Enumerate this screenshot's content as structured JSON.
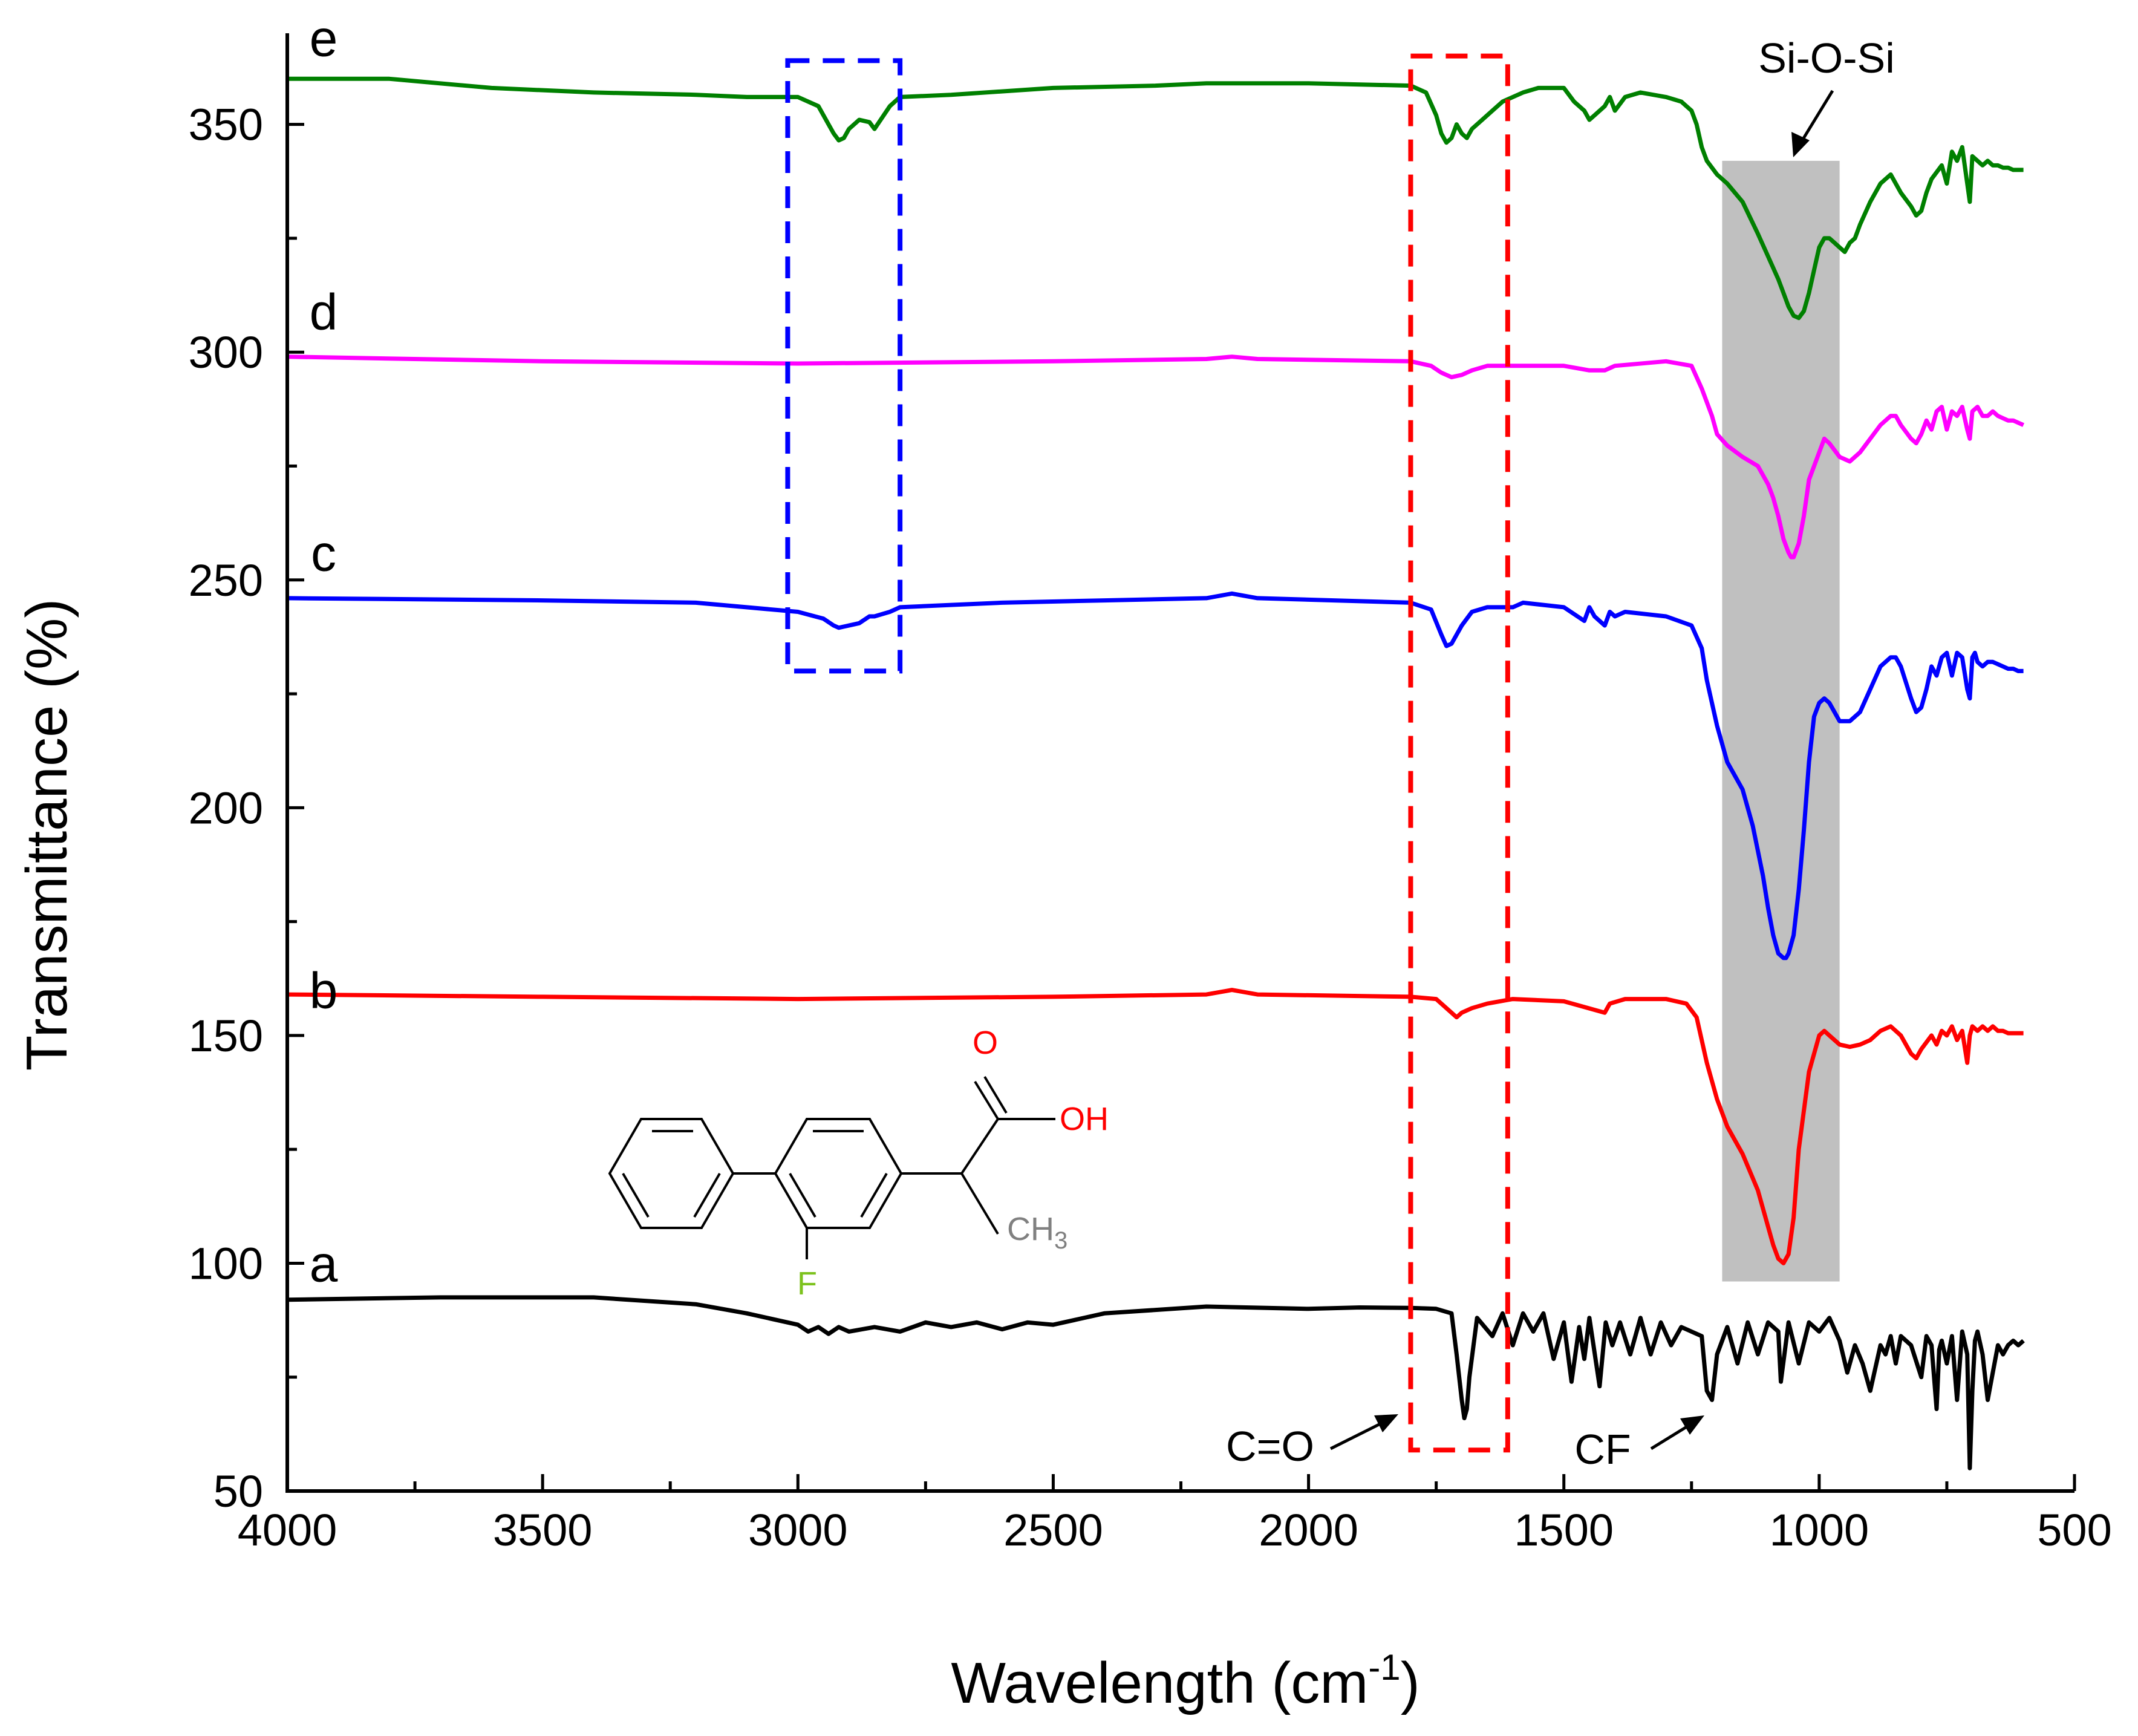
{
  "chart_data": {
    "type": "line",
    "title": "",
    "xlabel": "Wavelength (cm",
    "xlabel_sup": "-1",
    "xlabel_end": ")",
    "ylabel": "Transmittance (%)",
    "xlim": [
      4000,
      500
    ],
    "ylim": [
      50,
      370
    ],
    "x_ticks": [
      4000,
      3500,
      3000,
      2500,
      2000,
      1500,
      1000,
      500
    ],
    "y_ticks": [
      50,
      100,
      150,
      200,
      250,
      300,
      350
    ],
    "grid": false,
    "legend": "none",
    "series": [
      {
        "name": "a",
        "color": "#000000",
        "x": [
          4000,
          3700,
          3400,
          3200,
          3100,
          3000,
          2980,
          2960,
          2940,
          2920,
          2900,
          2850,
          2800,
          2750,
          2700,
          2650,
          2600,
          2550,
          2500,
          2400,
          2200,
          2000,
          1900,
          1800,
          1750,
          1720,
          1710,
          1700,
          1695,
          1690,
          1685,
          1670,
          1640,
          1620,
          1600,
          1580,
          1560,
          1540,
          1520,
          1500,
          1485,
          1470,
          1460,
          1450,
          1430,
          1418,
          1405,
          1390,
          1370,
          1350,
          1330,
          1310,
          1290,
          1270,
          1250,
          1230,
          1220,
          1210,
          1200,
          1180,
          1160,
          1140,
          1120,
          1100,
          1080,
          1075,
          1060,
          1040,
          1020,
          1000,
          980,
          960,
          945,
          930,
          915,
          900,
          880,
          870,
          860,
          850,
          840,
          820,
          800,
          790,
          780,
          770,
          765,
          760,
          750,
          740,
          730,
          720,
          710,
          705,
          700,
          695,
          690,
          680,
          670,
          660,
          650,
          640,
          630,
          620,
          610,
          600
        ],
        "values": [
          92,
          92.5,
          92.5,
          91,
          89,
          86.5,
          85,
          86,
          84.5,
          86,
          85,
          86,
          85,
          87,
          86,
          87,
          85.5,
          87,
          86.5,
          89,
          90.5,
          90,
          90.3,
          90.2,
          90,
          89,
          80,
          70,
          66,
          68,
          75,
          88,
          84,
          89,
          82,
          89,
          85,
          89,
          79,
          87,
          74,
          86,
          79,
          88,
          73,
          87,
          82,
          87,
          80,
          88,
          80,
          87,
          82,
          86,
          85,
          84,
          72,
          70,
          80,
          86,
          78,
          87,
          80,
          87,
          85,
          74,
          87,
          78,
          87,
          85,
          88,
          83,
          76,
          82,
          78,
          72,
          82,
          80,
          84,
          78,
          84,
          82,
          75,
          84,
          82,
          68,
          81,
          83,
          78,
          84,
          70,
          85,
          80,
          55,
          72,
          83,
          85,
          80,
          70,
          76,
          82,
          80,
          82,
          83,
          82,
          83
        ],
        "label_at": [
          4000,
          100
        ]
      },
      {
        "name": "b",
        "color": "#ff0000",
        "x": [
          4000,
          3500,
          3000,
          2500,
          2200,
          2150,
          2100,
          1800,
          1750,
          1720,
          1710,
          1700,
          1680,
          1650,
          1600,
          1500,
          1420,
          1410,
          1380,
          1300,
          1260,
          1240,
          1220,
          1200,
          1180,
          1150,
          1120,
          1100,
          1090,
          1080,
          1070,
          1060,
          1050,
          1040,
          1020,
          1000,
          990,
          980,
          960,
          940,
          920,
          900,
          880,
          860,
          840,
          820,
          810,
          800,
          780,
          770,
          760,
          750,
          740,
          730,
          720,
          710,
          705,
          700,
          690,
          680,
          670,
          660,
          650,
          640,
          630,
          620,
          610,
          600
        ],
        "values": [
          159,
          158.5,
          158,
          158.5,
          159,
          160,
          159,
          158.5,
          158,
          155,
          154,
          155,
          156,
          157,
          158,
          157.5,
          155,
          157,
          158,
          158,
          157,
          154,
          144,
          136,
          130,
          124,
          116,
          108,
          104,
          101,
          100,
          102,
          110,
          125,
          142,
          150,
          151,
          150,
          148,
          147.5,
          148,
          149,
          151,
          152,
          150,
          146,
          145,
          147,
          150,
          148,
          151,
          150,
          152,
          149,
          151,
          144,
          150,
          152,
          151,
          152,
          151,
          152,
          151,
          151,
          150.5,
          150.5,
          150.5,
          150.5
        ],
        "label_at": [
          4000,
          160
        ]
      },
      {
        "name": "c",
        "color": "#0000ff",
        "x": [
          4000,
          3500,
          3200,
          3000,
          2950,
          2930,
          2920,
          2900,
          2880,
          2860,
          2850,
          2820,
          2800,
          2600,
          2400,
          2200,
          2150,
          2100,
          1800,
          1760,
          1740,
          1730,
          1720,
          1700,
          1680,
          1650,
          1600,
          1580,
          1500,
          1460,
          1450,
          1440,
          1420,
          1410,
          1400,
          1380,
          1300,
          1250,
          1230,
          1220,
          1200,
          1180,
          1150,
          1130,
          1110,
          1100,
          1090,
          1080,
          1070,
          1065,
          1060,
          1050,
          1040,
          1030,
          1020,
          1010,
          1000,
          990,
          980,
          960,
          940,
          920,
          900,
          880,
          860,
          850,
          840,
          820,
          810,
          800,
          790,
          780,
          770,
          760,
          750,
          740,
          730,
          720,
          710,
          705,
          700,
          695,
          690,
          680,
          670,
          660,
          650,
          640,
          630,
          620,
          610,
          600
        ],
        "values": [
          246,
          245.5,
          245,
          243,
          241.5,
          240,
          239.5,
          240,
          240.5,
          242,
          242,
          243,
          244,
          245,
          245.5,
          246,
          247,
          246,
          245,
          243.5,
          238,
          235.5,
          236,
          240,
          243,
          244,
          244,
          245,
          244,
          241,
          244,
          242,
          240,
          243,
          242,
          243,
          242,
          240,
          235,
          228,
          218,
          210,
          204,
          196,
          185,
          178,
          172,
          168,
          167,
          167,
          168,
          172,
          182,
          195,
          210,
          220,
          223,
          224,
          223,
          219,
          219,
          221,
          226,
          231,
          233,
          233,
          231,
          224,
          221,
          222,
          226,
          231,
          229,
          233,
          234,
          229,
          234,
          233,
          226,
          224,
          233,
          234,
          232,
          231,
          232,
          232,
          231.5,
          231,
          230.5,
          230.5,
          230,
          230
        ],
        "label_at": [
          4000,
          256
        ]
      },
      {
        "name": "d",
        "color": "#ff00ff",
        "x": [
          4000,
          3500,
          3000,
          2500,
          2200,
          2150,
          2100,
          1800,
          1760,
          1740,
          1720,
          1700,
          1680,
          1650,
          1600,
          1500,
          1450,
          1420,
          1400,
          1300,
          1250,
          1230,
          1210,
          1200,
          1180,
          1150,
          1120,
          1100,
          1090,
          1080,
          1070,
          1060,
          1055,
          1050,
          1040,
          1030,
          1020,
          1000,
          990,
          980,
          960,
          940,
          920,
          900,
          880,
          860,
          850,
          840,
          820,
          810,
          800,
          790,
          780,
          770,
          760,
          750,
          740,
          730,
          720,
          710,
          705,
          700,
          690,
          680,
          670,
          660,
          650,
          640,
          630,
          620,
          610,
          600
        ],
        "values": [
          299,
          298,
          297.5,
          298,
          298.5,
          299,
          298.5,
          298,
          297,
          295.5,
          294.5,
          295,
          296,
          297,
          297,
          297,
          296,
          296,
          297,
          298,
          297,
          292,
          286,
          282,
          279.5,
          277,
          275,
          271,
          268,
          264,
          259,
          256,
          255,
          255,
          258,
          264,
          272,
          278,
          281,
          280,
          277,
          276,
          278,
          281,
          284,
          286,
          286,
          284,
          281,
          280,
          282,
          285,
          283,
          287,
          288,
          283,
          287,
          286,
          288,
          283,
          281,
          287,
          288,
          286,
          286,
          287,
          286,
          285.5,
          285,
          285,
          284.5,
          284
        ],
        "label_at": [
          4000,
          309
        ]
      },
      {
        "name": "e",
        "color": "#008000",
        "x": [
          4000,
          3800,
          3600,
          3400,
          3200,
          3100,
          3000,
          2960,
          2940,
          2930,
          2920,
          2910,
          2900,
          2880,
          2860,
          2850,
          2820,
          2800,
          2700,
          2500,
          2300,
          2200,
          2000,
          1800,
          1770,
          1750,
          1740,
          1730,
          1720,
          1710,
          1700,
          1690,
          1680,
          1660,
          1640,
          1620,
          1600,
          1580,
          1550,
          1500,
          1480,
          1460,
          1450,
          1440,
          1420,
          1410,
          1400,
          1380,
          1350,
          1300,
          1270,
          1250,
          1240,
          1230,
          1220,
          1200,
          1180,
          1150,
          1120,
          1100,
          1080,
          1070,
          1060,
          1050,
          1040,
          1030,
          1020,
          1010,
          1000,
          990,
          980,
          970,
          960,
          950,
          940,
          930,
          920,
          900,
          880,
          860,
          840,
          820,
          810,
          800,
          790,
          780,
          760,
          750,
          740,
          730,
          720,
          710,
          705,
          700,
          690,
          680,
          670,
          660,
          650,
          640,
          630,
          620,
          610,
          600
        ],
        "values": [
          360,
          360,
          358,
          357,
          356.5,
          356,
          356,
          354,
          350,
          348,
          346.5,
          347,
          349,
          351,
          350.5,
          349,
          354,
          356,
          356.5,
          358,
          358.5,
          359,
          359,
          358.5,
          357,
          352,
          348,
          346,
          347,
          350,
          348,
          347,
          349,
          351,
          353,
          355,
          356,
          357,
          358,
          358,
          355,
          353,
          351,
          352,
          354,
          356,
          353,
          356,
          357,
          356,
          355,
          353,
          350,
          345,
          342,
          339,
          337,
          333,
          326,
          321,
          316,
          313,
          310,
          308,
          307.5,
          309,
          313,
          318,
          323,
          325,
          325,
          324,
          323,
          322,
          324,
          325,
          328,
          333,
          337,
          339,
          335,
          332,
          330,
          331,
          335,
          338,
          341,
          337,
          344,
          342,
          345,
          337,
          333,
          343,
          342,
          341,
          342,
          341,
          341,
          340.5,
          340.5,
          340,
          340,
          340
        ],
        "label_at": [
          4000,
          369
        ]
      }
    ],
    "annotations": {
      "si_o_si": "Si-O-Si",
      "c_eq_o": "C=O",
      "cf": "CF",
      "chem_oxygen": "O",
      "chem_oh": "OH",
      "chem_ch3": "CH",
      "chem_ch3_sub": "3",
      "chem_f": "F"
    },
    "colors": {
      "blue_box": "#0000ff",
      "red_box": "#ff0000",
      "shade": "#c0c0c0",
      "chem_red": "#ff0000",
      "chem_gray": "#808080",
      "chem_green": "#7dc21e"
    }
  }
}
